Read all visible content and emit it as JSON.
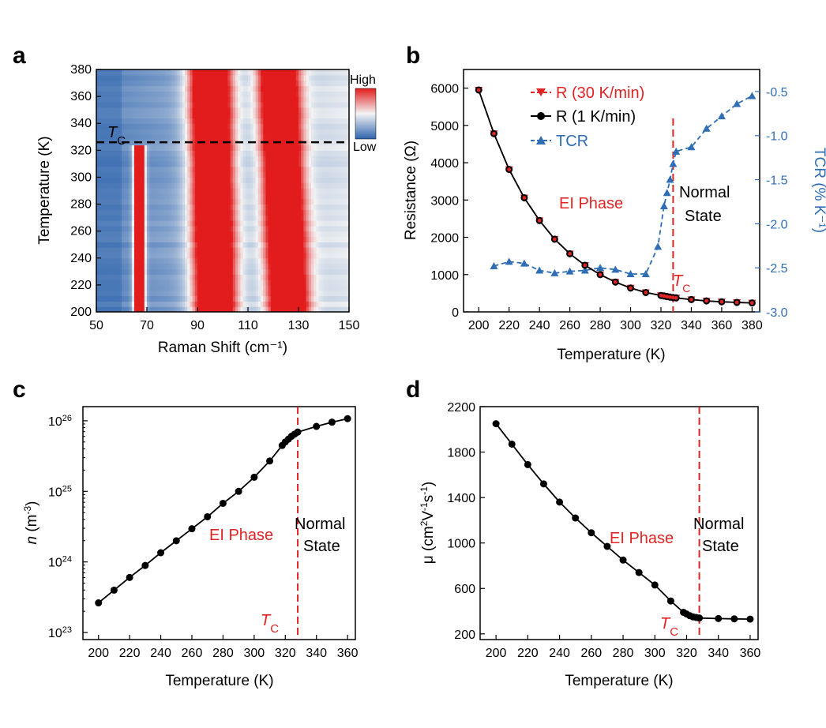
{
  "colors": {
    "red": "#e02424",
    "blue": "#2f6db5",
    "black": "#000000",
    "heat_low": "#2e64ad",
    "heat_mid": "#f4f4f4",
    "heat_high": "#e21c1c"
  },
  "chart_data": [
    {
      "id": "a",
      "panel_label": "a",
      "type": "heatmap",
      "xlabel": "Raman Shift (cm⁻¹)",
      "ylabel": "Temperature (K)",
      "xlim": [
        50,
        150
      ],
      "ylim": [
        200,
        380
      ],
      "xticks": [
        50,
        70,
        90,
        110,
        130,
        150
      ],
      "yticks": [
        200,
        220,
        240,
        260,
        280,
        300,
        320,
        340,
        360,
        380
      ],
      "colorbar": {
        "high": "High",
        "low": "Low"
      },
      "annotation": {
        "text": "T",
        "sub": "C",
        "tc": 326
      },
      "peaks": [
        {
          "center_low_T": 67,
          "center_high_T": 67,
          "width": 1.5,
          "t_max": 323
        },
        {
          "center_low_T": 97,
          "center_high_T": 95,
          "width": 6
        },
        {
          "center_low_T": 126,
          "center_high_T": 122,
          "width": 5.5
        }
      ]
    },
    {
      "id": "b",
      "panel_label": "b",
      "type": "line",
      "xlabel": "Temperature (K)",
      "ylabel": "Resistance (Ω)",
      "y2label": "TCR (% K⁻¹)",
      "xlim": [
        190,
        385
      ],
      "ylim": [
        0,
        6500
      ],
      "y2lim": [
        -3.0,
        -0.25
      ],
      "xticks": [
        200,
        220,
        240,
        260,
        280,
        300,
        320,
        340,
        360,
        380
      ],
      "yticks": [
        0,
        1000,
        2000,
        3000,
        4000,
        5000,
        6000
      ],
      "y2ticks": [
        "-3.0",
        "-2.5",
        "-2.0",
        "-1.5",
        "-1.0",
        "-0.5"
      ],
      "tc": 328,
      "legend": {
        "position": "top-left",
        "items": [
          "R (30 K/min)",
          "R (1 K/min)",
          "TCR"
        ]
      },
      "annotations": {
        "ei": "EI Phase",
        "normal1": "Normal",
        "normal2": "State",
        "tc": "T",
        "tc_sub": "C"
      },
      "series": [
        {
          "name": "R (30 K/min)",
          "axis": "left",
          "x": [
            200,
            210,
            220,
            230,
            240,
            250,
            260,
            270,
            280,
            290,
            300,
            310,
            320,
            322,
            324,
            326,
            328,
            330,
            340,
            350,
            360,
            370,
            380
          ],
          "values": [
            5950,
            4780,
            3820,
            3060,
            2450,
            1950,
            1560,
            1250,
            1000,
            800,
            640,
            520,
            440,
            425,
            410,
            395,
            385,
            375,
            330,
            295,
            270,
            255,
            240
          ]
        },
        {
          "name": "R (1 K/min)",
          "axis": "left",
          "x": [
            200,
            210,
            220,
            230,
            240,
            250,
            260,
            270,
            280,
            290,
            300,
            310,
            320,
            322,
            324,
            326,
            328,
            330,
            340,
            350,
            360,
            370,
            380
          ],
          "values": [
            5950,
            4780,
            3820,
            3060,
            2450,
            1950,
            1560,
            1250,
            1000,
            800,
            640,
            520,
            440,
            425,
            410,
            395,
            385,
            375,
            330,
            295,
            270,
            255,
            240
          ]
        },
        {
          "name": "TCR",
          "axis": "right",
          "x": [
            210,
            220,
            230,
            240,
            250,
            260,
            270,
            280,
            290,
            300,
            310,
            318,
            322,
            324,
            326,
            328,
            330,
            340,
            350,
            360,
            370,
            380
          ],
          "values": [
            -2.48,
            -2.43,
            -2.45,
            -2.53,
            -2.56,
            -2.54,
            -2.53,
            -2.5,
            -2.52,
            -2.57,
            -2.57,
            -2.26,
            -1.8,
            -1.65,
            -1.5,
            -1.32,
            -1.18,
            -1.13,
            -0.92,
            -0.78,
            -0.64,
            -0.55
          ]
        }
      ]
    },
    {
      "id": "c",
      "panel_label": "c",
      "type": "line",
      "scale_y": "log",
      "xlabel": "Temperature (K)",
      "ylabel": "n (m⁻³)",
      "xlim": [
        190,
        365
      ],
      "ylim_exp": [
        22.9,
        26.2
      ],
      "xticks": [
        200,
        220,
        240,
        260,
        280,
        300,
        320,
        340,
        360
      ],
      "yticks": [
        {
          "base": "10",
          "exp": "23",
          "value": 23
        },
        {
          "base": "10",
          "exp": "24",
          "value": 24
        },
        {
          "base": "10",
          "exp": "25",
          "value": 25
        },
        {
          "base": "10",
          "exp": "26",
          "value": 26
        }
      ],
      "tc": 328,
      "annotations": {
        "ei": "EI Phase",
        "normal1": "Normal",
        "normal2": "State",
        "tc": "T",
        "tc_sub": "C"
      },
      "series": [
        {
          "x": [
            200,
            210,
            220,
            230,
            240,
            250,
            260,
            270,
            280,
            290,
            300,
            310,
            318,
            320,
            322,
            324,
            326,
            328,
            340,
            350,
            360
          ],
          "log10_values": [
            23.42,
            23.6,
            23.78,
            23.95,
            24.13,
            24.3,
            24.47,
            24.64,
            24.83,
            25.0,
            25.2,
            25.43,
            25.65,
            25.7,
            25.74,
            25.78,
            25.81,
            25.84,
            25.92,
            25.98,
            26.03
          ]
        }
      ]
    },
    {
      "id": "d",
      "panel_label": "d",
      "type": "line",
      "xlabel": "Temperature (K)",
      "ylabel": "μ (cm²V⁻¹s⁻¹)",
      "xlim": [
        190,
        365
      ],
      "ylim": [
        150,
        2200
      ],
      "xticks": [
        200,
        220,
        240,
        260,
        280,
        300,
        320,
        340,
        360
      ],
      "yticks": [
        200,
        600,
        1000,
        1400,
        1800,
        2200
      ],
      "tc": 328,
      "annotations": {
        "ei": "EI Phase",
        "normal1": "Normal",
        "normal2": "State",
        "tc": "T",
        "tc_sub": "C"
      },
      "series": [
        {
          "x": [
            200,
            210,
            220,
            230,
            240,
            250,
            260,
            270,
            280,
            290,
            300,
            310,
            318,
            320,
            322,
            324,
            326,
            328,
            340,
            350,
            360
          ],
          "values": [
            2050,
            1870,
            1690,
            1520,
            1360,
            1220,
            1090,
            970,
            850,
            740,
            630,
            490,
            390,
            375,
            360,
            350,
            345,
            340,
            335,
            332,
            330
          ]
        }
      ]
    }
  ]
}
